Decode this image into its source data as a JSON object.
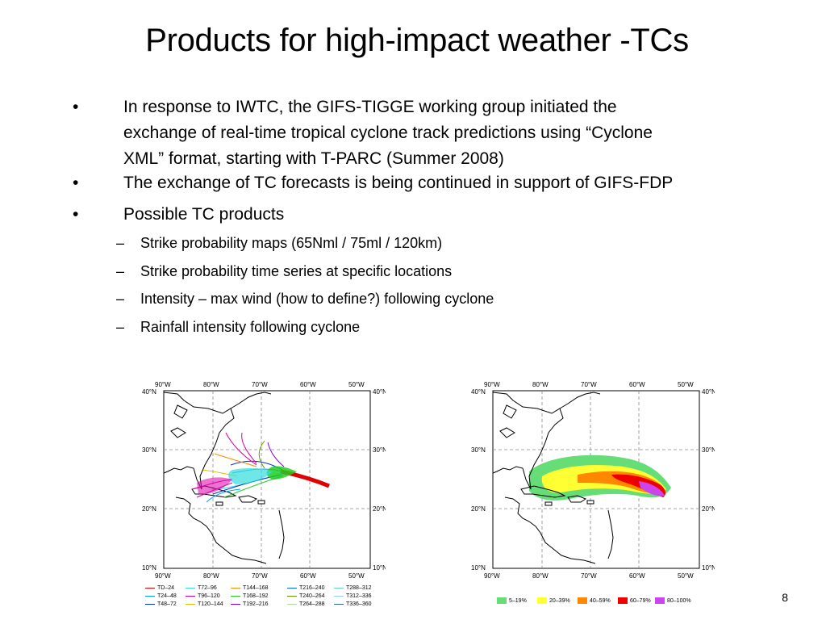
{
  "slide": {
    "title": "Products for high-impact weather -TCs",
    "page_number": "8",
    "bullets": [
      {
        "marker": "•",
        "lines": [
          "In response to IWTC, the GIFS-TIGGE working group initiated  the",
          "exchange of real-time tropical cyclone track predictions using “Cyclone",
          "XML” format, starting with T-PARC (Summer 2008)"
        ]
      },
      {
        "marker": "•",
        "lines": [
          "The exchange of TC forecasts is being continued in support of GIFS-FDP"
        ]
      },
      {
        "marker": "•",
        "lines": [
          "Possible TC products"
        ]
      }
    ],
    "sub_bullets": [
      {
        "marker": "–",
        "text": "Strike probability maps (65Nml / 75ml / 120km)"
      },
      {
        "marker": "–",
        "text": "Strike probability time series at specific locations"
      },
      {
        "marker": "–",
        "text": "Intensity – max wind (how to define?) following cyclone"
      },
      {
        "marker": "–",
        "text": "Rainfall intensity following cyclone"
      }
    ]
  },
  "maps": {
    "lon_labels": [
      "90°W",
      "80°W",
      "70°W",
      "60°W",
      "50°W"
    ],
    "lat_labels": [
      "40°N",
      "30°N",
      "20°N",
      "10°N"
    ],
    "track_legend": [
      {
        "label": "TD–24",
        "color": "#e00000"
      },
      {
        "label": "T24–48",
        "color": "#00a0ff"
      },
      {
        "label": "T48–72",
        "color": "#0033cc"
      },
      {
        "label": "T72–96",
        "color": "#33dddd"
      },
      {
        "label": "T96–120",
        "color": "#dd00aa"
      },
      {
        "label": "T120–144",
        "color": "#e0c000"
      },
      {
        "label": "T144–168",
        "color": "#ff8800"
      },
      {
        "label": "T168–192",
        "color": "#22cc22"
      },
      {
        "label": "T192–216",
        "color": "#8800cc"
      },
      {
        "label": "T216–240",
        "color": "#0066ff"
      },
      {
        "label": "T240–264",
        "color": "#669900"
      },
      {
        "label": "T264–288",
        "color": "#aaddaa"
      },
      {
        "label": "T288–312",
        "color": "#66cccc"
      },
      {
        "label": "T312–336",
        "color": "#99ccff"
      },
      {
        "label": "T336–360",
        "color": "#3366aa"
      }
    ],
    "prob_legend": [
      {
        "label": "5–19%",
        "color": "#66dd77"
      },
      {
        "label": "20–39%",
        "color": "#ffff33"
      },
      {
        "label": "40–59%",
        "color": "#ff8800"
      },
      {
        "label": "60–79%",
        "color": "#ee0000"
      },
      {
        "label": "80–100%",
        "color": "#cc44ee"
      }
    ]
  }
}
